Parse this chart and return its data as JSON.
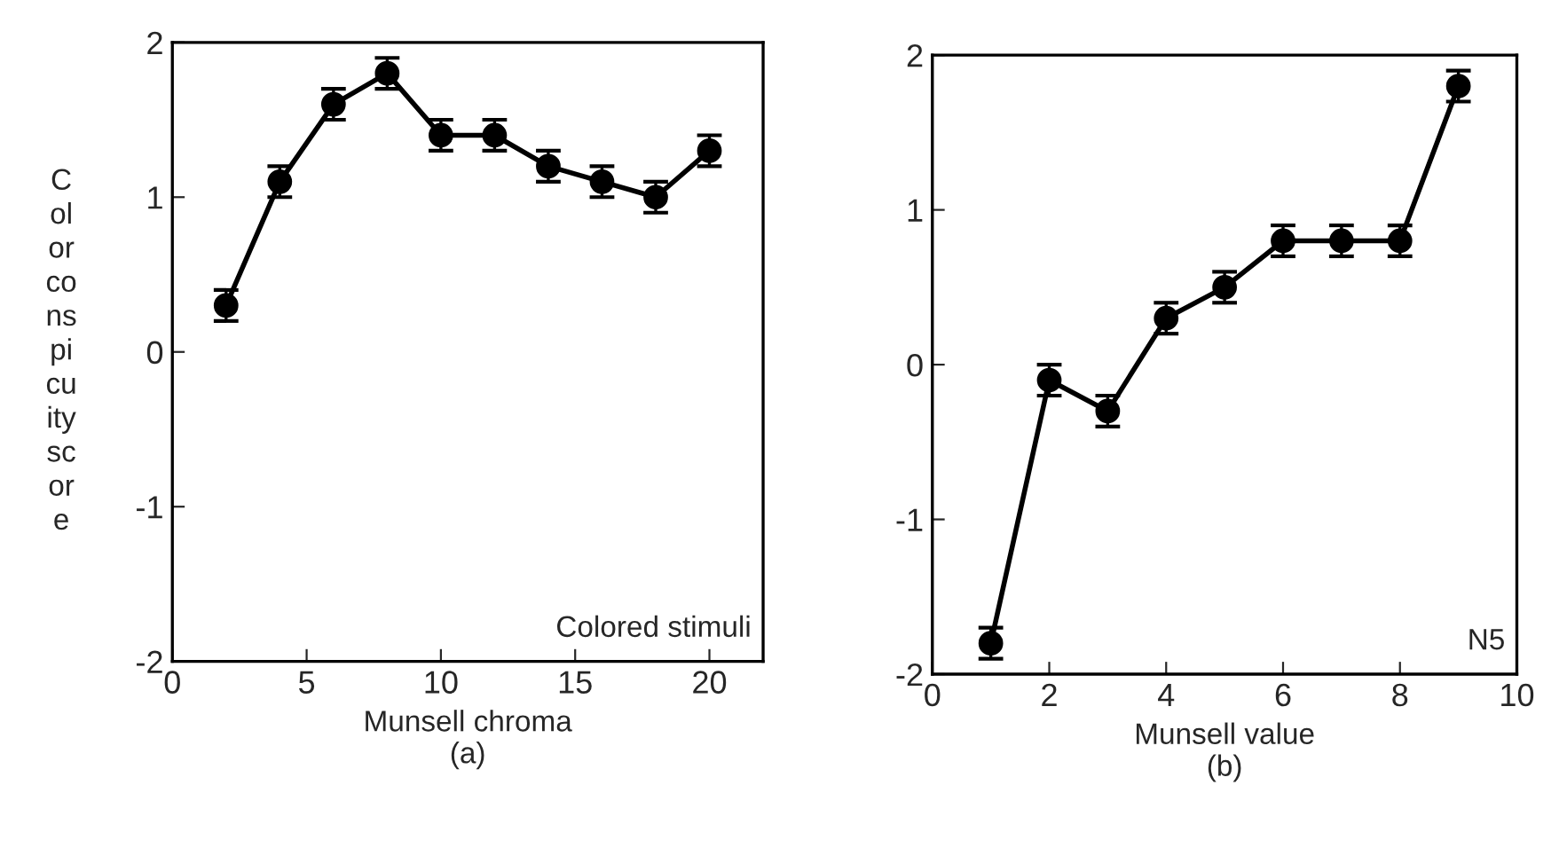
{
  "chart_data": [
    {
      "type": "line",
      "xlabel": "Munsell chroma\n(a)",
      "ylabel": "C\nol\nor\nco\nns\npi\ncu\nity\nsc\nor\ne",
      "x": [
        2,
        4,
        6,
        8,
        10,
        12,
        14,
        16,
        18,
        20
      ],
      "series": [
        {
          "color": "#000000",
          "values": [
            0.3,
            1.1,
            1.6,
            1.8,
            1.4,
            1.4,
            1.2,
            1.1,
            1.0,
            1.3
          ],
          "errors": [
            0.1,
            0.1,
            0.1,
            0.1,
            0.1,
            0.1,
            0.1,
            0.1,
            0.1,
            0.1
          ]
        }
      ],
      "xlim": [
        0,
        22
      ],
      "xticks": [
        0,
        5,
        10,
        15,
        20
      ],
      "ylim": [
        -2,
        2
      ],
      "yticks": [
        -2,
        -1,
        0,
        1,
        2
      ],
      "marker": "circle",
      "line_style": "solid",
      "grid": false,
      "legend": false,
      "annotations": [
        "Colored stimuli"
      ]
    },
    {
      "type": "line",
      "xlabel": "Munsell value\n(b)",
      "x": [
        1,
        2,
        3,
        4,
        5,
        6,
        7,
        8,
        9
      ],
      "series": [
        {
          "color": "#000000",
          "values": [
            -1.8,
            -0.1,
            -0.3,
            0.3,
            0.5,
            0.8,
            0.8,
            0.8,
            1.8
          ],
          "errors": [
            0.1,
            0.1,
            0.1,
            0.1,
            0.1,
            0.1,
            0.1,
            0.1,
            0.1
          ]
        }
      ],
      "xlim": [
        0,
        10
      ],
      "xticks": [
        0,
        2,
        4,
        6,
        8,
        10
      ],
      "ylim": [
        -2,
        2
      ],
      "yticks": [
        -2,
        -1,
        0,
        1,
        2
      ],
      "marker": "circle",
      "line_style": "solid",
      "grid": false,
      "legend": false,
      "annotations": [
        "N5"
      ]
    }
  ]
}
